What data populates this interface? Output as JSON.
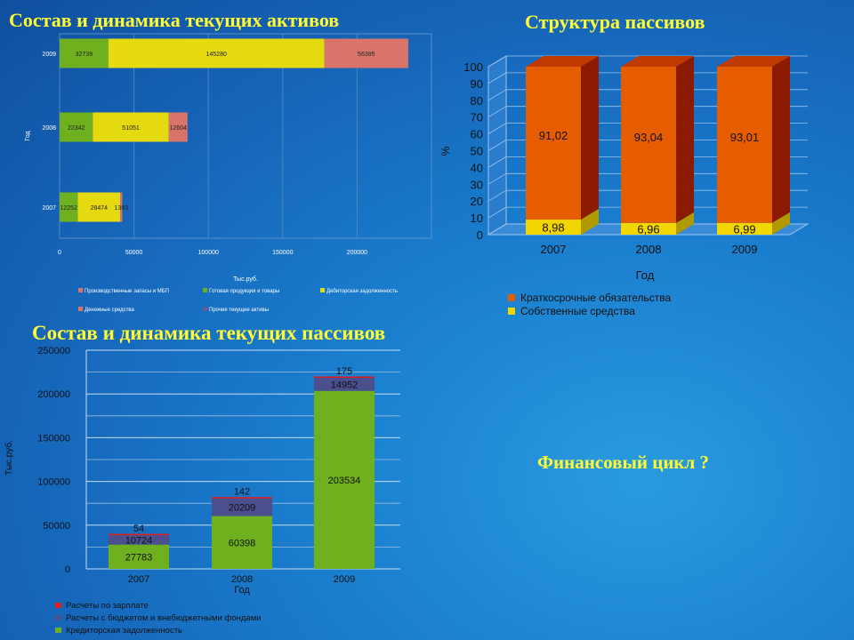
{
  "titles": {
    "assets": "Состав и динамика текущих активов",
    "liabilities_structure": "Структура пассивов",
    "liabilities_dynamics": "Состав и динамика текущих пассивов",
    "cycle": "Финансовый цикл ?"
  },
  "colors": {
    "title": "#ffff33",
    "green": "#6fb01e",
    "yellow": "#e5d90f",
    "salmon": "#d9746b",
    "orange": "#e65c00",
    "navy": "#4b4f8e",
    "red": "#e01c1c"
  },
  "chart_data": [
    {
      "type": "bar",
      "orientation": "horizontal",
      "stacked": true,
      "categories": [
        "2007",
        "2008",
        "2009"
      ],
      "series": [
        {
          "name": "Производственные запасы и МБП",
          "values": [
            0,
            0,
            0
          ],
          "color": "#d9746b"
        },
        {
          "name": "Готовая продукция и товары",
          "values": [
            12252,
            22342,
            32739
          ],
          "color": "#6fb01e"
        },
        {
          "name": "Дебиторская задолженность",
          "values": [
            28474,
            51051,
            145280
          ],
          "color": "#e5d90f"
        },
        {
          "name": "Денежные средства",
          "values": [
            1393,
            12604,
            56395
          ],
          "color": "#d9746b"
        },
        {
          "name": "Прочие текущие активы",
          "values": [
            0,
            0,
            0
          ],
          "color": "#6a5a9a"
        }
      ],
      "value_labels": [
        [
          "12252",
          "28474",
          "1393"
        ],
        [
          "22342",
          "51051",
          "12604"
        ],
        [
          "32739",
          "145280",
          "56395"
        ]
      ],
      "xlim": [
        0,
        250000
      ],
      "xticks": [
        "0",
        "50000",
        "100000",
        "150000",
        "200000"
      ],
      "xlabel": "Тыс.руб.",
      "ylabel": "Год",
      "grid": true,
      "legend_position": "bottom"
    },
    {
      "type": "bar",
      "stacked": true,
      "three_d": true,
      "categories": [
        "2007",
        "2008",
        "2009"
      ],
      "series": [
        {
          "name": "Собственные средства",
          "values": [
            8.98,
            6.96,
            6.99
          ],
          "labels": [
            "8,98",
            "6,96",
            "6,99"
          ],
          "color": "#f2d600"
        },
        {
          "name": "Краткосрочные обязательства",
          "values": [
            91.02,
            93.04,
            93.01
          ],
          "labels": [
            "91,02",
            "93,04",
            "93,01"
          ],
          "color": "#e65c00"
        }
      ],
      "ylim": [
        0,
        100
      ],
      "yticks": [
        "0",
        "10",
        "20",
        "30",
        "40",
        "50",
        "60",
        "70",
        "80",
        "90",
        "100"
      ],
      "xlabel": "Год",
      "ylabel": "%",
      "grid": true,
      "legend_entries": [
        "Краткосрочные обязательства",
        "Собственные средства"
      ],
      "legend_position": "bottom"
    },
    {
      "type": "bar",
      "stacked": true,
      "categories": [
        "2007",
        "2008",
        "2009"
      ],
      "series": [
        {
          "name": "Кредиторская задолженность",
          "values": [
            27783,
            60398,
            203534
          ],
          "color": "#6fb01e"
        },
        {
          "name": "Расчеты с бюджетом и внебюджетными фондами",
          "values": [
            10724,
            20209,
            14952
          ],
          "color": "#4b4f8e"
        },
        {
          "name": "Расчеты по зарплате",
          "values": [
            54,
            142,
            175
          ],
          "color": "#e01c1c"
        }
      ],
      "ylim": [
        0,
        250000
      ],
      "yticks": [
        "0",
        "50000",
        "100000",
        "150000",
        "200000",
        "250000"
      ],
      "xlabel": "Год",
      "ylabel": "Тыс.руб.",
      "grid": true,
      "legend_entries": [
        "Расчеты по зарплате",
        "Расчеты с бюджетом и внебюджетными фондами",
        "Кредиторская задолженность"
      ],
      "legend_position": "bottom"
    }
  ]
}
